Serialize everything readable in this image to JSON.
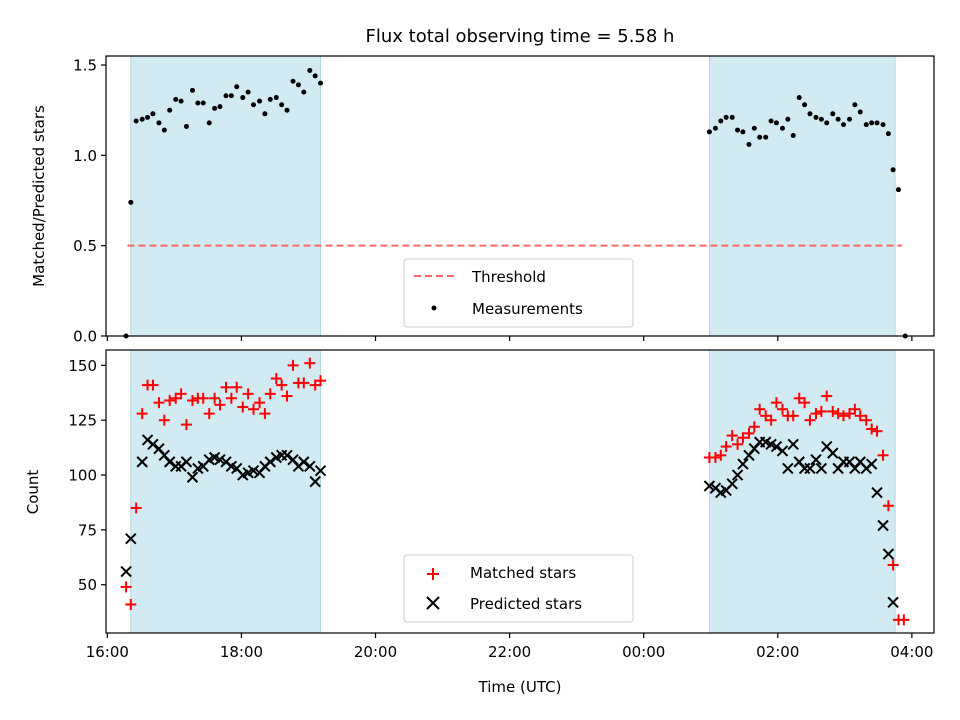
{
  "chart_data": [
    {
      "type": "scatter",
      "title": "Flux total observing time = 5.58 h",
      "xlabel": "",
      "ylabel": "Matched/Predicted stars",
      "ylim": [
        0,
        1.55
      ],
      "yticks": [
        0.0,
        0.5,
        1.0,
        1.5
      ],
      "ytick_labels": [
        "0.0",
        "0.5",
        "1.0",
        "1.5"
      ],
      "x_range_hours": [
        15.98,
        28.33
      ],
      "xticks_hours": [
        16,
        18,
        20,
        22,
        24,
        26,
        28
      ],
      "shaded_intervals": [
        [
          16.35,
          19.18
        ],
        [
          24.98,
          27.75
        ]
      ],
      "shade_color": "#add8e6",
      "threshold": {
        "name": "Threshold",
        "value": 0.5,
        "x": [
          16.3,
          27.85
        ],
        "color": "#ff6666"
      },
      "legend_position": "lower center",
      "series": [
        {
          "name": "Measurements",
          "color": "#000000",
          "marker": "dot",
          "points": [
            [
              16.28,
              0.0
            ],
            [
              16.35,
              0.74
            ],
            [
              16.43,
              1.19
            ],
            [
              16.52,
              1.2
            ],
            [
              16.6,
              1.21
            ],
            [
              16.68,
              1.23
            ],
            [
              16.77,
              1.18
            ],
            [
              16.85,
              1.14
            ],
            [
              16.93,
              1.25
            ],
            [
              17.02,
              1.31
            ],
            [
              17.1,
              1.3
            ],
            [
              17.18,
              1.16
            ],
            [
              17.27,
              1.36
            ],
            [
              17.35,
              1.29
            ],
            [
              17.43,
              1.29
            ],
            [
              17.52,
              1.18
            ],
            [
              17.6,
              1.26
            ],
            [
              17.68,
              1.27
            ],
            [
              17.77,
              1.33
            ],
            [
              17.85,
              1.33
            ],
            [
              17.93,
              1.38
            ],
            [
              18.02,
              1.32
            ],
            [
              18.1,
              1.35
            ],
            [
              18.18,
              1.28
            ],
            [
              18.27,
              1.3
            ],
            [
              18.35,
              1.23
            ],
            [
              18.43,
              1.31
            ],
            [
              18.52,
              1.32
            ],
            [
              18.6,
              1.28
            ],
            [
              18.68,
              1.25
            ],
            [
              18.77,
              1.41
            ],
            [
              18.85,
              1.39
            ],
            [
              18.93,
              1.35
            ],
            [
              19.02,
              1.47
            ],
            [
              19.1,
              1.44
            ],
            [
              19.18,
              1.4
            ],
            [
              24.98,
              1.13
            ],
            [
              25.07,
              1.15
            ],
            [
              25.15,
              1.19
            ],
            [
              25.23,
              1.21
            ],
            [
              25.32,
              1.21
            ],
            [
              25.4,
              1.14
            ],
            [
              25.48,
              1.13
            ],
            [
              25.57,
              1.06
            ],
            [
              25.65,
              1.15
            ],
            [
              25.73,
              1.1
            ],
            [
              25.82,
              1.1
            ],
            [
              25.9,
              1.19
            ],
            [
              25.98,
              1.18
            ],
            [
              26.07,
              1.15
            ],
            [
              26.15,
              1.2
            ],
            [
              26.23,
              1.11
            ],
            [
              26.32,
              1.32
            ],
            [
              26.4,
              1.28
            ],
            [
              26.48,
              1.23
            ],
            [
              26.57,
              1.21
            ],
            [
              26.65,
              1.2
            ],
            [
              26.73,
              1.18
            ],
            [
              26.82,
              1.23
            ],
            [
              26.9,
              1.2
            ],
            [
              26.98,
              1.17
            ],
            [
              27.07,
              1.2
            ],
            [
              27.15,
              1.28
            ],
            [
              27.23,
              1.24
            ],
            [
              27.32,
              1.17
            ],
            [
              27.4,
              1.18
            ],
            [
              27.48,
              1.18
            ],
            [
              27.57,
              1.17
            ],
            [
              27.65,
              1.12
            ],
            [
              27.72,
              0.92
            ],
            [
              27.8,
              0.81
            ],
            [
              27.9,
              0.0
            ]
          ]
        }
      ]
    },
    {
      "type": "scatter",
      "title": "",
      "xlabel": "Time (UTC)",
      "ylabel": "Count",
      "ylim": [
        28,
        157
      ],
      "yticks": [
        50,
        75,
        100,
        125,
        150
      ],
      "ytick_labels": [
        "50",
        "75",
        "100",
        "125",
        "150"
      ],
      "x_range_hours": [
        15.98,
        28.33
      ],
      "xticks_hours": [
        16,
        18,
        20,
        22,
        24,
        26,
        28
      ],
      "xtick_labels": [
        "16:00",
        "18:00",
        "20:00",
        "22:00",
        "00:00",
        "02:00",
        "04:00"
      ],
      "shaded_intervals": [
        [
          16.35,
          19.18
        ],
        [
          24.98,
          27.75
        ]
      ],
      "shade_color": "#add8e6",
      "legend_position": "lower center",
      "series": [
        {
          "name": "Matched stars",
          "color": "#ff0000",
          "marker": "plus",
          "points": [
            [
              16.28,
              49
            ],
            [
              16.35,
              41
            ],
            [
              16.43,
              85
            ],
            [
              16.52,
              128
            ],
            [
              16.6,
              141
            ],
            [
              16.68,
              141
            ],
            [
              16.77,
              133
            ],
            [
              16.85,
              125
            ],
            [
              16.93,
              134
            ],
            [
              17.02,
              135
            ],
            [
              17.1,
              137
            ],
            [
              17.18,
              123
            ],
            [
              17.27,
              134
            ],
            [
              17.35,
              135
            ],
            [
              17.43,
              135
            ],
            [
              17.52,
              128
            ],
            [
              17.6,
              135
            ],
            [
              17.68,
              132
            ],
            [
              17.77,
              140
            ],
            [
              17.85,
              135
            ],
            [
              17.93,
              140
            ],
            [
              18.02,
              131
            ],
            [
              18.1,
              137
            ],
            [
              18.18,
              130
            ],
            [
              18.27,
              133
            ],
            [
              18.35,
              128
            ],
            [
              18.43,
              137
            ],
            [
              18.52,
              144
            ],
            [
              18.6,
              141
            ],
            [
              18.68,
              136
            ],
            [
              18.77,
              150
            ],
            [
              18.85,
              142
            ],
            [
              18.93,
              142
            ],
            [
              19.02,
              151
            ],
            [
              19.1,
              141
            ],
            [
              19.18,
              143
            ],
            [
              24.98,
              108
            ],
            [
              25.07,
              108
            ],
            [
              25.15,
              109
            ],
            [
              25.23,
              113
            ],
            [
              25.32,
              118
            ],
            [
              25.4,
              114
            ],
            [
              25.48,
              117
            ],
            [
              25.57,
              119
            ],
            [
              25.65,
              122
            ],
            [
              25.73,
              130
            ],
            [
              25.82,
              127
            ],
            [
              25.9,
              125
            ],
            [
              25.98,
              133
            ],
            [
              26.07,
              130
            ],
            [
              26.15,
              127
            ],
            [
              26.23,
              127
            ],
            [
              26.32,
              135
            ],
            [
              26.4,
              133
            ],
            [
              26.48,
              125
            ],
            [
              26.57,
              128
            ],
            [
              26.65,
              129
            ],
            [
              26.73,
              136
            ],
            [
              26.82,
              129
            ],
            [
              26.9,
              128
            ],
            [
              26.98,
              127
            ],
            [
              27.07,
              128
            ],
            [
              27.15,
              130
            ],
            [
              27.23,
              127
            ],
            [
              27.32,
              125
            ],
            [
              27.4,
              121
            ],
            [
              27.48,
              120
            ],
            [
              27.57,
              109
            ],
            [
              27.65,
              86
            ],
            [
              27.72,
              59
            ],
            [
              27.8,
              34
            ],
            [
              27.88,
              34
            ]
          ]
        },
        {
          "name": "Predicted stars",
          "color": "#000000",
          "marker": "x",
          "points": [
            [
              16.28,
              56
            ],
            [
              16.35,
              71
            ],
            [
              16.52,
              106
            ],
            [
              16.6,
              116
            ],
            [
              16.68,
              114
            ],
            [
              16.77,
              112
            ],
            [
              16.85,
              109
            ],
            [
              16.93,
              106
            ],
            [
              17.02,
              104
            ],
            [
              17.1,
              104
            ],
            [
              17.18,
              106
            ],
            [
              17.27,
              99
            ],
            [
              17.35,
              103
            ],
            [
              17.43,
              104
            ],
            [
              17.52,
              107
            ],
            [
              17.6,
              108
            ],
            [
              17.68,
              107
            ],
            [
              17.77,
              106
            ],
            [
              17.85,
              104
            ],
            [
              17.93,
              103
            ],
            [
              18.02,
              100
            ],
            [
              18.1,
              101
            ],
            [
              18.18,
              102
            ],
            [
              18.27,
              101
            ],
            [
              18.35,
              104
            ],
            [
              18.43,
              106
            ],
            [
              18.52,
              108
            ],
            [
              18.6,
              109
            ],
            [
              18.68,
              109
            ],
            [
              18.77,
              107
            ],
            [
              18.85,
              104
            ],
            [
              18.93,
              106
            ],
            [
              19.02,
              104
            ],
            [
              19.1,
              97
            ],
            [
              19.18,
              102
            ],
            [
              24.98,
              95
            ],
            [
              25.07,
              94
            ],
            [
              25.15,
              92
            ],
            [
              25.23,
              93
            ],
            [
              25.32,
              96
            ],
            [
              25.4,
              100
            ],
            [
              25.48,
              105
            ],
            [
              25.57,
              109
            ],
            [
              25.65,
              112
            ],
            [
              25.73,
              115
            ],
            [
              25.82,
              115
            ],
            [
              25.9,
              114
            ],
            [
              25.98,
              113
            ],
            [
              26.07,
              111
            ],
            [
              26.15,
              103
            ],
            [
              26.23,
              114
            ],
            [
              26.32,
              106
            ],
            [
              26.4,
              103
            ],
            [
              26.48,
              103
            ],
            [
              26.57,
              107
            ],
            [
              26.65,
              103
            ],
            [
              26.73,
              113
            ],
            [
              26.82,
              110
            ],
            [
              26.9,
              103
            ],
            [
              26.98,
              106
            ],
            [
              27.07,
              106
            ],
            [
              27.15,
              103
            ],
            [
              27.23,
              106
            ],
            [
              27.32,
              103
            ],
            [
              27.4,
              105
            ],
            [
              27.48,
              92
            ],
            [
              27.57,
              77
            ],
            [
              27.65,
              64
            ],
            [
              27.72,
              42
            ]
          ]
        }
      ]
    }
  ]
}
